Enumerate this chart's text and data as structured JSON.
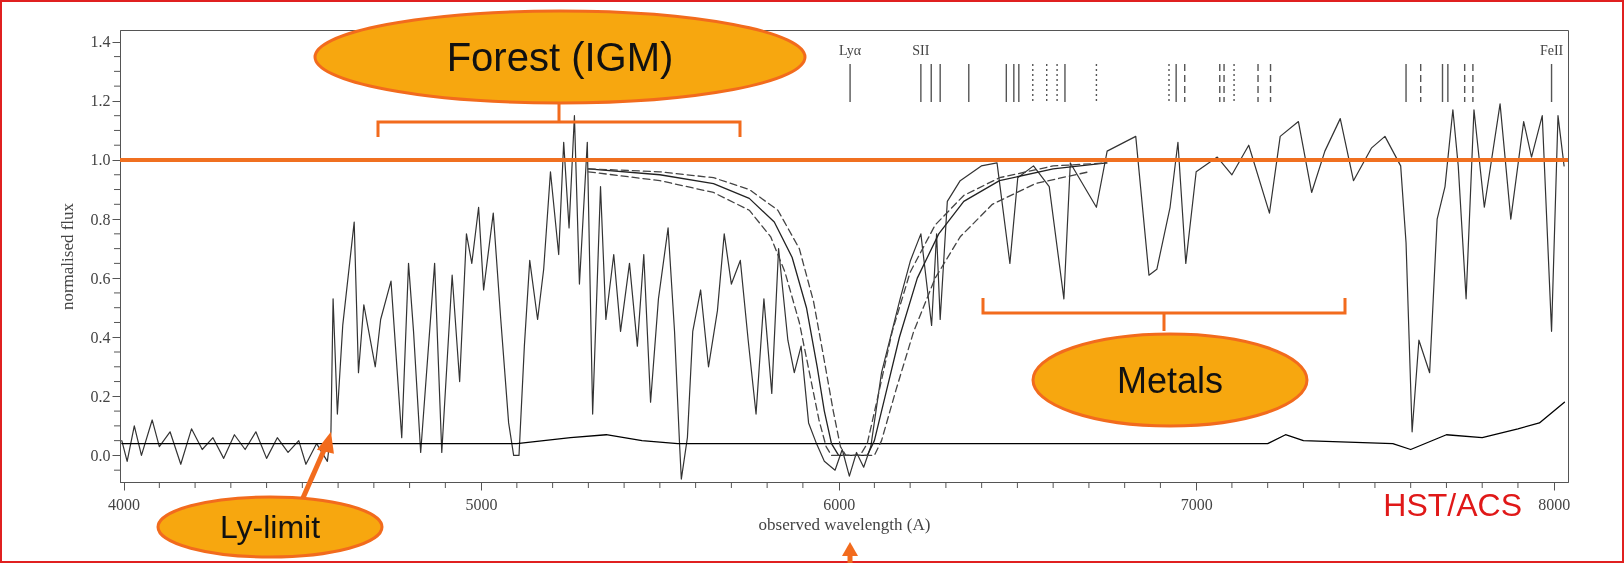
{
  "chart_data": {
    "type": "line",
    "xlabel": "observed wavelength (A)",
    "ylabel": "normalised flux",
    "xlim": [
      3990,
      8040
    ],
    "ylim": [
      -0.09,
      1.44
    ],
    "xticks": [
      4000,
      {
        "value": 4100,
        "label": null
      },
      {
        "value": 4200,
        "label": null
      },
      {
        "value": 4300,
        "label": null
      },
      {
        "value": 4400,
        "label": null
      },
      {
        "value": 4500,
        "label": null
      },
      {
        "value": 4600,
        "label": null
      },
      {
        "value": 4700,
        "label": null
      },
      {
        "value": 4800,
        "label": null
      },
      {
        "value": 4900,
        "label": null
      },
      5000,
      {
        "value": 5100,
        "label": null
      },
      {
        "value": 5200,
        "label": null
      },
      {
        "value": 5300,
        "label": null
      },
      {
        "value": 5400,
        "label": null
      },
      {
        "value": 5500,
        "label": null
      },
      {
        "value": 5600,
        "label": null
      },
      {
        "value": 5700,
        "label": null
      },
      {
        "value": 5800,
        "label": null
      },
      {
        "value": 5900,
        "label": null
      },
      6000,
      {
        "value": 6100,
        "label": null
      },
      {
        "value": 6200,
        "label": null
      },
      {
        "value": 6300,
        "label": null
      },
      {
        "value": 6400,
        "label": null
      },
      {
        "value": 6500,
        "label": null
      },
      {
        "value": 6600,
        "label": null
      },
      {
        "value": 6700,
        "label": null
      },
      {
        "value": 6800,
        "label": null
      },
      {
        "value": 6900,
        "label": null
      },
      7000,
      {
        "value": 7100,
        "label": null
      },
      {
        "value": 7200,
        "label": null
      },
      {
        "value": 7300,
        "label": null
      },
      {
        "value": 7400,
        "label": null
      },
      {
        "value": 7500,
        "label": null
      },
      {
        "value": 7600,
        "label": null
      },
      {
        "value": 7700,
        "label": null
      },
      {
        "value": 7800,
        "label": null
      },
      {
        "value": 7900,
        "label": null
      },
      8000
    ],
    "yticks": [
      {
        "value": -0.05,
        "label": null
      },
      {
        "value": 0,
        "label": "0.0"
      },
      {
        "value": 0.05,
        "label": null
      },
      {
        "value": 0.1,
        "label": null
      },
      {
        "value": 0.15,
        "label": null
      },
      0.2,
      {
        "value": 0.25,
        "label": null
      },
      {
        "value": 0.3,
        "label": null
      },
      {
        "value": 0.35,
        "label": null
      },
      0.4,
      {
        "value": 0.45,
        "label": null
      },
      {
        "value": 0.5,
        "label": null
      },
      {
        "value": 0.55,
        "label": null
      },
      0.6,
      {
        "value": 0.65,
        "label": null
      },
      {
        "value": 0.7,
        "label": null
      },
      {
        "value": 0.75,
        "label": null
      },
      0.8,
      {
        "value": 0.85,
        "label": null
      },
      {
        "value": 0.9,
        "label": null
      },
      {
        "value": 0.95,
        "label": null
      },
      {
        "value": 1,
        "label": "1.0"
      },
      {
        "value": 1.05,
        "label": null
      },
      {
        "value": 1.1,
        "label": null
      },
      {
        "value": 1.15,
        "label": null
      },
      1.2,
      {
        "value": 1.25,
        "label": null
      },
      {
        "value": 1.3,
        "label": null
      },
      {
        "value": 1.35,
        "label": null
      },
      1.4
    ],
    "series": [
      {
        "color": "#333333",
        "x": [
          3995,
          4010,
          4030,
          4050,
          4080,
          4100,
          4130,
          4160,
          4190,
          4220,
          4250,
          4280,
          4310,
          4340,
          4370,
          4400,
          4430,
          4460,
          4490,
          4510,
          4540,
          4570,
          4580,
          4586,
          4598,
          4613,
          4645,
          4657,
          4672,
          4704,
          4719,
          4748,
          4778,
          4797,
          4811,
          4831,
          4870,
          4890,
          4919,
          4940,
          4959,
          4974,
          4993,
          5007,
          5034,
          5055,
          5077,
          5091,
          5106,
          5121,
          5136,
          5158,
          5175,
          5194,
          5217,
          5231,
          5246,
          5261,
          5275,
          5297,
          5312,
          5334,
          5349,
          5371,
          5390,
          5415,
          5437,
          5455,
          5474,
          5496,
          5523,
          5541,
          5555,
          5560,
          5577,
          5592,
          5614,
          5636,
          5661,
          5680,
          5700,
          5725,
          5747,
          5769,
          5791,
          5813,
          5832,
          5858,
          5876,
          5895,
          5916,
          5938,
          5960,
          5990,
          6010,
          6030,
          6050,
          6070,
          6090,
          6120,
          6172,
          6201,
          6230,
          6260,
          6274,
          6284,
          6304,
          6340,
          6399,
          6443,
          6479,
          6501,
          6545,
          6589,
          6630,
          6648,
          6721,
          6751,
          6831,
          6868,
          6890,
          6927,
          6949,
          6971,
          7000,
          7059,
          7100,
          7147,
          7205,
          7235,
          7286,
          7323,
          7360,
          7403,
          7440,
          7490,
          7528,
          7572,
          7587,
          7604,
          7623,
          7653,
          7674,
          7696,
          7718,
          7733,
          7755,
          7777,
          7806,
          7850,
          7880,
          7916,
          7938,
          7968,
          7994,
          8012,
          8029
        ],
        "values": [
          0.05,
          -0.02,
          0.1,
          0.0,
          0.12,
          0.03,
          0.08,
          -0.03,
          0.09,
          0.02,
          0.06,
          -0.01,
          0.07,
          0.02,
          0.08,
          -0.01,
          0.06,
          0.01,
          0.05,
          -0.03,
          0.04,
          -0.02,
          0.08,
          0.53,
          0.14,
          0.44,
          0.79,
          0.28,
          0.51,
          0.3,
          0.46,
          0.59,
          0.06,
          0.65,
          0.42,
          0.01,
          0.65,
          0.01,
          0.61,
          0.25,
          0.75,
          0.65,
          0.84,
          0.56,
          0.82,
          0.46,
          0.11,
          0.0,
          0.0,
          0.37,
          0.66,
          0.46,
          0.63,
          0.96,
          0.68,
          1.06,
          0.77,
          1.15,
          0.58,
          1.06,
          0.14,
          0.91,
          0.46,
          0.68,
          0.42,
          0.65,
          0.37,
          0.68,
          0.18,
          0.53,
          0.77,
          0.42,
          0.04,
          -0.08,
          0.06,
          0.42,
          0.56,
          0.3,
          0.49,
          0.75,
          0.58,
          0.66,
          0.39,
          0.14,
          0.53,
          0.21,
          0.7,
          0.39,
          0.28,
          0.37,
          0.11,
          0.04,
          -0.02,
          -0.05,
          0.02,
          -0.07,
          0.01,
          -0.04,
          0.03,
          0.28,
          0.53,
          0.66,
          0.75,
          0.44,
          0.75,
          0.46,
          0.86,
          0.93,
          0.98,
          0.99,
          0.65,
          0.94,
          0.98,
          0.91,
          0.53,
          0.99,
          0.84,
          1.03,
          1.08,
          0.61,
          0.63,
          0.84,
          1.06,
          0.65,
          0.96,
          1.01,
          0.95,
          1.05,
          0.82,
          1.08,
          1.13,
          0.89,
          1.03,
          1.14,
          0.93,
          1.04,
          1.08,
          0.98,
          0.72,
          0.08,
          0.39,
          0.28,
          0.8,
          0.91,
          1.17,
          0.98,
          0.53,
          1.17,
          0.84,
          1.19,
          0.8,
          1.13,
          1.01,
          1.15,
          0.42,
          1.15,
          0.98
        ]
      },
      {
        "color": "#000000",
        "x": [
          3995,
          4600,
          5100,
          5250,
          5350,
          5450,
          5550,
          7200,
          7250,
          7300,
          7550,
          7600,
          7700,
          7800,
          7900,
          7960,
          8030
        ],
        "values": [
          0.04,
          0.04,
          0.04,
          0.06,
          0.07,
          0.05,
          0.04,
          0.04,
          0.07,
          0.05,
          0.04,
          0.02,
          0.07,
          0.06,
          0.09,
          0.11,
          0.18
        ]
      },
      {
        "color": "#222222",
        "x": [
          5300,
          5500,
          5650,
          5750,
          5820,
          5870,
          5910,
          5940,
          5960,
          5980,
          6000,
          6080,
          6100,
          6130,
          6170,
          6220,
          6280,
          6350,
          6450,
          6600,
          6750
        ],
        "values": [
          0.97,
          0.95,
          0.92,
          0.87,
          0.79,
          0.67,
          0.5,
          0.3,
          0.15,
          0.04,
          0.0,
          0.0,
          0.05,
          0.2,
          0.4,
          0.6,
          0.75,
          0.86,
          0.93,
          0.97,
          0.99
        ]
      },
      {
        "color": "#444444",
        "line_style": "dashed",
        "x": [
          5300,
          5500,
          5650,
          5750,
          5830,
          5890,
          5930,
          5960,
          5985,
          6005,
          6020,
          6060,
          6080,
          6110,
          6150,
          6200,
          6270,
          6350,
          6450,
          6600,
          6750
        ],
        "values": [
          0.97,
          0.96,
          0.94,
          0.9,
          0.83,
          0.7,
          0.52,
          0.32,
          0.15,
          0.03,
          0.0,
          0.0,
          0.04,
          0.2,
          0.42,
          0.62,
          0.78,
          0.88,
          0.94,
          0.98,
          0.99
        ]
      },
      {
        "color": "#444444",
        "line_style": "dashed",
        "x": [
          5300,
          5500,
          5650,
          5750,
          5810,
          5850,
          5890,
          5920,
          5945,
          5965,
          5980,
          6100,
          6120,
          6160,
          6210,
          6270,
          6340,
          6430,
          6550,
          6700
        ],
        "values": [
          0.96,
          0.93,
          0.89,
          0.83,
          0.74,
          0.62,
          0.45,
          0.27,
          0.12,
          0.03,
          0.0,
          0.0,
          0.05,
          0.22,
          0.42,
          0.6,
          0.74,
          0.85,
          0.92,
          0.96
        ]
      }
    ],
    "ref_lines": [
      {
        "axis": "y",
        "value": 1,
        "color": "#f07020"
      },
      {
        "axis": "x",
        "value": 6032,
        "label": "Lyα",
        "color": "#555555"
      },
      {
        "axis": "x",
        "value": 6230,
        "label": "SII",
        "color": "#555555"
      },
      {
        "axis": "x",
        "value": 6259,
        "color": "#555555"
      },
      {
        "axis": "x",
        "value": 6284,
        "color": "#555555"
      },
      {
        "axis": "x",
        "value": 6364,
        "color": "#555555"
      },
      {
        "axis": "x",
        "value": 6469,
        "color": "#555555"
      },
      {
        "axis": "x",
        "value": 6490,
        "color": "#555555"
      },
      {
        "axis": "x",
        "value": 6504,
        "color": "#555555"
      },
      {
        "axis": "x",
        "value": 6543,
        "color": "#555555",
        "line_style": "dotted"
      },
      {
        "axis": "x",
        "value": 6582,
        "color": "#555555",
        "line_style": "dotted"
      },
      {
        "axis": "x",
        "value": 6611,
        "color": "#555555",
        "line_style": "dotted"
      },
      {
        "axis": "x",
        "value": 6633,
        "color": "#555555"
      },
      {
        "axis": "x",
        "value": 6721,
        "color": "#555555",
        "line_style": "dotted"
      },
      {
        "axis": "x",
        "value": 6924,
        "color": "#555555",
        "line_style": "dotted"
      },
      {
        "axis": "x",
        "value": 6944,
        "color": "#555555"
      },
      {
        "axis": "x",
        "value": 6968,
        "color": "#555555",
        "line_style": "dashed"
      },
      {
        "axis": "x",
        "value": 7066,
        "color": "#555555",
        "line_style": "dashed"
      },
      {
        "axis": "x",
        "value": 7078,
        "color": "#555555",
        "line_style": "dashed"
      },
      {
        "axis": "x",
        "value": 7106,
        "color": "#555555",
        "line_style": "dotted"
      },
      {
        "axis": "x",
        "value": 7173,
        "color": "#555555",
        "line_style": "dashed"
      },
      {
        "axis": "x",
        "value": 7208,
        "color": "#555555",
        "line_style": "dashed"
      },
      {
        "axis": "x",
        "value": 7587,
        "color": "#555555"
      },
      {
        "axis": "x",
        "value": 7628,
        "color": "#555555",
        "line_style": "dashed"
      },
      {
        "axis": "x",
        "value": 7689,
        "color": "#555555"
      },
      {
        "axis": "x",
        "value": 7704,
        "color": "#555555"
      },
      {
        "axis": "x",
        "value": 7751,
        "color": "#555555",
        "line_style": "dashed"
      },
      {
        "axis": "x",
        "value": 7774,
        "color": "#555555",
        "line_style": "dashed"
      },
      {
        "axis": "x",
        "value": 7994,
        "label": "FeII",
        "color": "#555555"
      }
    ],
    "annotations": [
      "Forest (IGM)",
      "Metals",
      {
        "text": "Ly-limit",
        "x": 4580,
        "y": 0.08
      },
      "HST/ACS"
    ]
  }
}
